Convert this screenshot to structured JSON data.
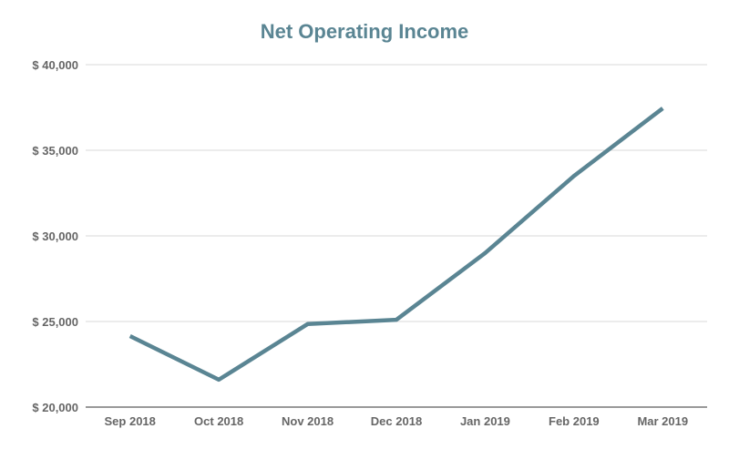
{
  "chart_data": {
    "type": "line",
    "title": "Net Operating Income",
    "xlabel": "",
    "ylabel": "",
    "categories": [
      "Sep 2018",
      "Oct 2018",
      "Nov 2018",
      "Dec 2018",
      "Jan 2019",
      "Feb 2019",
      "Mar 2019"
    ],
    "series": [
      {
        "values": [
          24150,
          21600,
          24850,
          25100,
          29000,
          33500,
          37450
        ]
      }
    ],
    "ylim": [
      20000,
      40000
    ],
    "yticks": [
      20000,
      25000,
      30000,
      35000,
      40000
    ],
    "ytick_labels": [
      "$ 20,000",
      "$ 25,000",
      "$ 30,000",
      "$ 35,000",
      "$ 40,000"
    ],
    "grid": true,
    "legend": "none",
    "colors": {
      "line": "#5a8593",
      "title": "#5a8593",
      "grid": "#d9d9d9",
      "tick": "#666666"
    }
  }
}
